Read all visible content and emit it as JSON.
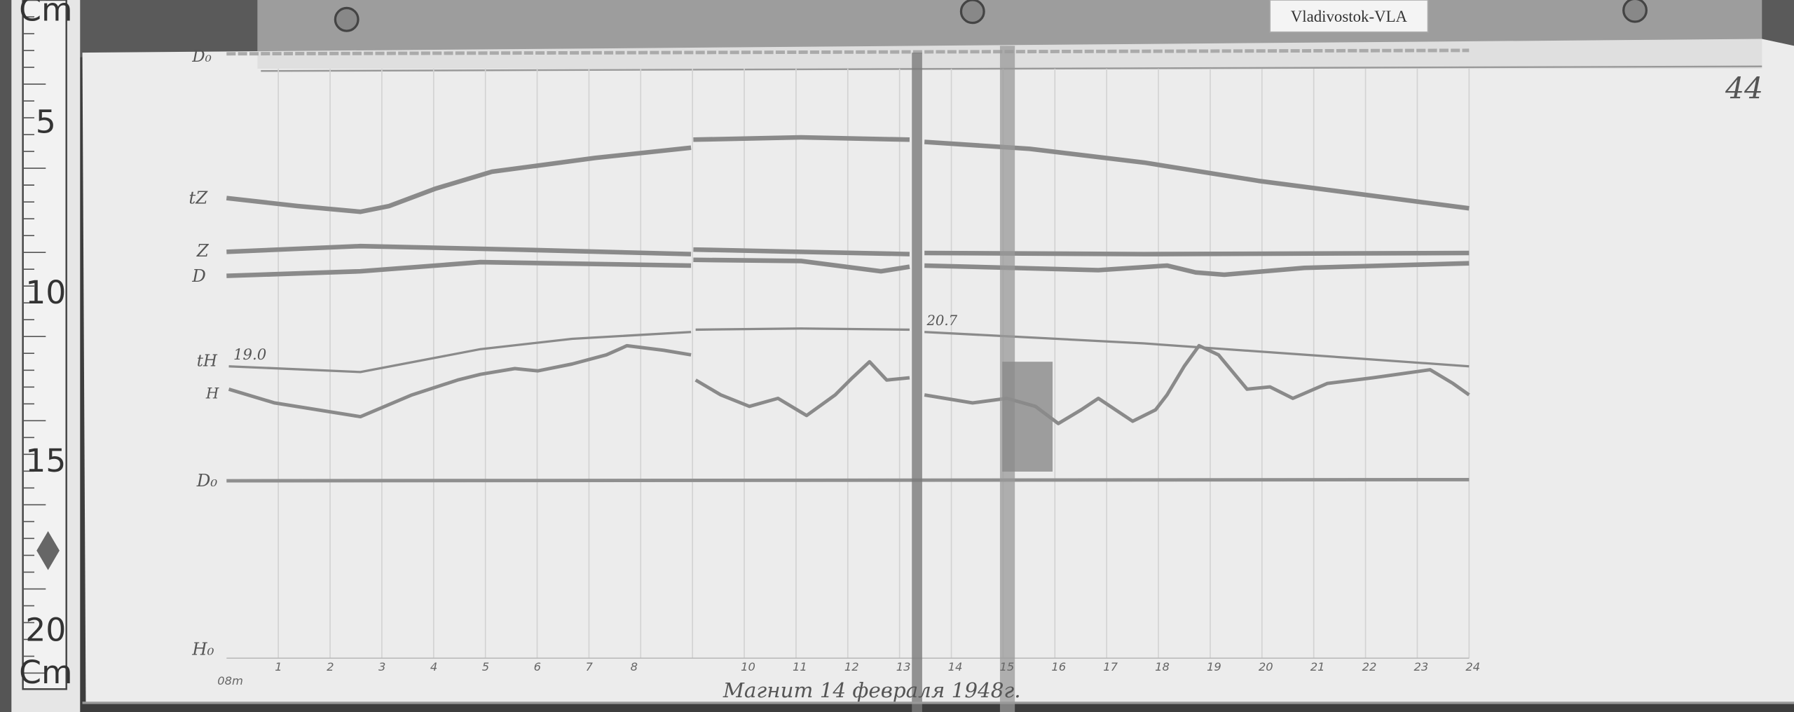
{
  "station_label": "Vladivostok-VLA",
  "sheet_number": "44",
  "ruler": {
    "numbers": [
      "5",
      "10",
      "15",
      "20"
    ],
    "unit_top": "Cm",
    "unit_bottom": "Cm"
  },
  "trace_labels": {
    "d0_top": "D₀",
    "tz": "tZ",
    "z": "Z",
    "d": "D",
    "th": "tH",
    "th_value": "19.0",
    "h": "H",
    "d0_baseline": "D₀",
    "h0_bottom": "H₀"
  },
  "annotation_th_right": "20.7",
  "hour_axis": {
    "start_label": "08m",
    "ticks": [
      "1",
      "2",
      "3",
      "4",
      "5",
      "6",
      "7",
      "8",
      "10",
      "11",
      "12",
      "13",
      "14",
      "15",
      "16",
      "17",
      "18",
      "19",
      "20",
      "21",
      "22",
      "23",
      "24"
    ]
  },
  "caption": "Магнит 14 февраля 1948г.",
  "colors": {
    "paper": "#ececec",
    "trace": "#8a8a8a",
    "background": "#3a3a3a"
  }
}
